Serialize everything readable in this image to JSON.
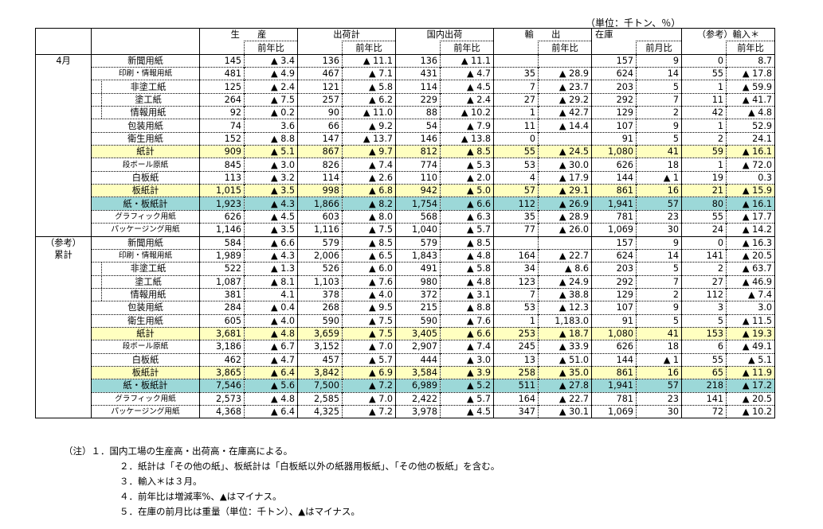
{
  "unit_label": "（単位：千トン、％）",
  "header": {
    "groups": [
      "生　　産",
      "出荷計",
      "国内出荷",
      "輸　　出",
      "在庫",
      "（参考）輸入＊"
    ],
    "sub_yoy": "前年比",
    "sub_mom": "前月比"
  },
  "sections": [
    {
      "label": "4月",
      "rows": [
        {
          "label": "新聞用紙",
          "style": "",
          "v": [
            "145",
            "▲ 3.4",
            "136",
            "▲ 11.1",
            "136",
            "▲ 11.1",
            "",
            "",
            "157",
            "9",
            "0",
            "8.7"
          ]
        },
        {
          "label": "印刷・情報用紙",
          "style": "small",
          "v": [
            "481",
            "▲ 4.9",
            "467",
            "▲ 7.1",
            "431",
            "▲ 4.7",
            "35",
            "▲ 28.9",
            "624",
            "14",
            "55",
            "▲ 17.8"
          ]
        },
        {
          "label": "非塗工紙",
          "style": "ind",
          "v": [
            "125",
            "▲ 2.4",
            "121",
            "▲ 5.8",
            "114",
            "▲ 4.5",
            "7",
            "▲ 23.7",
            "203",
            "5",
            "1",
            "▲ 59.9"
          ]
        },
        {
          "label": "塗工紙",
          "style": "ind",
          "v": [
            "264",
            "▲ 7.5",
            "257",
            "▲ 6.2",
            "229",
            "▲ 2.4",
            "27",
            "▲ 29.2",
            "292",
            "7",
            "11",
            "▲ 41.7"
          ]
        },
        {
          "label": "情報用紙",
          "style": "ind",
          "v": [
            "92",
            "▲ 0.2",
            "90",
            "▲ 11.0",
            "88",
            "▲ 10.2",
            "1",
            "▲ 42.7",
            "129",
            "2",
            "42",
            "▲ 4.8"
          ]
        },
        {
          "label": "包装用紙",
          "style": "",
          "v": [
            "74",
            "3.6",
            "66",
            "▲ 9.2",
            "54",
            "▲ 7.9",
            "11",
            "▲ 14.4",
            "107",
            "9",
            "1",
            "52.9"
          ]
        },
        {
          "label": "衛生用紙",
          "style": "",
          "v": [
            "152",
            "▲ 8.8",
            "147",
            "▲ 13.7",
            "146",
            "▲ 13.8",
            "0",
            "",
            "91",
            "5",
            "2",
            "24.1"
          ]
        },
        {
          "label": "紙計",
          "style": "y",
          "v": [
            "909",
            "▲ 5.1",
            "867",
            "▲ 9.7",
            "812",
            "▲ 8.5",
            "55",
            "▲ 24.5",
            "1,080",
            "41",
            "59",
            "▲ 16.1"
          ]
        },
        {
          "label": "段ボール原紙",
          "style": "small",
          "v": [
            "845",
            "▲ 3.0",
            "826",
            "▲ 7.4",
            "774",
            "▲ 5.3",
            "53",
            "▲ 30.0",
            "626",
            "18",
            "1",
            "▲ 72.0"
          ]
        },
        {
          "label": "白板紙",
          "style": "",
          "v": [
            "113",
            "▲ 3.2",
            "114",
            "▲ 2.6",
            "110",
            "▲ 2.0",
            "4",
            "▲ 17.9",
            "144",
            "▲ 1",
            "19",
            "0.3"
          ]
        },
        {
          "label": "板紙計",
          "style": "y",
          "v": [
            "1,015",
            "▲ 3.5",
            "998",
            "▲ 6.8",
            "942",
            "▲ 5.0",
            "57",
            "▲ 29.1",
            "861",
            "16",
            "21",
            "▲ 15.9"
          ]
        },
        {
          "label": "紙・板紙計",
          "style": "c",
          "v": [
            "1,923",
            "▲ 4.3",
            "1,866",
            "▲ 8.2",
            "1,754",
            "▲ 6.6",
            "112",
            "▲ 26.9",
            "1,941",
            "57",
            "80",
            "▲ 16.1"
          ]
        },
        {
          "label": "グラフィック用紙",
          "style": "small",
          "v": [
            "626",
            "▲ 4.5",
            "603",
            "▲ 8.0",
            "568",
            "▲ 6.3",
            "35",
            "▲ 28.9",
            "781",
            "23",
            "55",
            "▲ 17.7"
          ]
        },
        {
          "label": "パッケージング用紙",
          "style": "small",
          "v": [
            "1,146",
            "▲ 3.5",
            "1,116",
            "▲ 7.5",
            "1,040",
            "▲ 5.7",
            "77",
            "▲ 26.0",
            "1,069",
            "30",
            "24",
            "▲ 14.2"
          ]
        }
      ]
    },
    {
      "label": "（参考）\n累計",
      "rows": [
        {
          "label": "新聞用紙",
          "style": "",
          "v": [
            "584",
            "▲ 6.6",
            "579",
            "▲ 8.5",
            "579",
            "▲ 8.5",
            "",
            "",
            "157",
            "9",
            "0",
            "▲ 16.3"
          ]
        },
        {
          "label": "印刷・情報用紙",
          "style": "small",
          "v": [
            "1,989",
            "▲ 4.3",
            "2,006",
            "▲ 6.5",
            "1,843",
            "▲ 4.8",
            "164",
            "▲ 22.7",
            "624",
            "14",
            "141",
            "▲ 20.5"
          ]
        },
        {
          "label": "非塗工紙",
          "style": "ind",
          "v": [
            "522",
            "▲ 1.3",
            "526",
            "▲ 6.0",
            "491",
            "▲ 5.8",
            "34",
            "▲ 8.6",
            "203",
            "5",
            "2",
            "▲ 63.7"
          ]
        },
        {
          "label": "塗工紙",
          "style": "ind",
          "v": [
            "1,087",
            "▲ 8.1",
            "1,103",
            "▲ 7.6",
            "980",
            "▲ 4.8",
            "123",
            "▲ 24.9",
            "292",
            "7",
            "27",
            "▲ 46.9"
          ]
        },
        {
          "label": "情報用紙",
          "style": "ind",
          "v": [
            "381",
            "4.1",
            "378",
            "▲ 4.0",
            "372",
            "▲ 3.1",
            "7",
            "▲ 38.8",
            "129",
            "2",
            "112",
            "▲ 7.4"
          ]
        },
        {
          "label": "包装用紙",
          "style": "",
          "v": [
            "284",
            "▲ 0.4",
            "268",
            "▲ 9.5",
            "215",
            "▲ 8.8",
            "53",
            "▲ 12.3",
            "107",
            "9",
            "3",
            "3.0"
          ]
        },
        {
          "label": "衛生用紙",
          "style": "",
          "v": [
            "605",
            "▲ 4.0",
            "590",
            "▲ 7.5",
            "590",
            "▲ 7.6",
            "1",
            "1,183.0",
            "91",
            "5",
            "5",
            "▲ 11.5"
          ]
        },
        {
          "label": "紙計",
          "style": "y",
          "v": [
            "3,681",
            "▲ 4.8",
            "3,659",
            "▲ 7.5",
            "3,405",
            "▲ 6.6",
            "253",
            "▲ 18.7",
            "1,080",
            "41",
            "153",
            "▲ 19.3"
          ]
        },
        {
          "label": "段ボール原紙",
          "style": "small",
          "v": [
            "3,186",
            "▲ 6.7",
            "3,152",
            "▲ 7.0",
            "2,907",
            "▲ 7.4",
            "245",
            "▲ 33.9",
            "626",
            "18",
            "6",
            "▲ 49.1"
          ]
        },
        {
          "label": "白板紙",
          "style": "",
          "v": [
            "462",
            "▲ 4.7",
            "457",
            "▲ 5.7",
            "444",
            "▲ 3.0",
            "13",
            "▲ 51.0",
            "144",
            "▲ 1",
            "55",
            "▲ 5.1"
          ]
        },
        {
          "label": "板紙計",
          "style": "y",
          "v": [
            "3,865",
            "▲ 6.4",
            "3,842",
            "▲ 6.9",
            "3,584",
            "▲ 3.9",
            "258",
            "▲ 35.0",
            "861",
            "16",
            "65",
            "▲ 11.9"
          ]
        },
        {
          "label": "紙・板紙計",
          "style": "c",
          "v": [
            "7,546",
            "▲ 5.6",
            "7,500",
            "▲ 7.2",
            "6,989",
            "▲ 5.2",
            "511",
            "▲ 27.8",
            "1,941",
            "57",
            "218",
            "▲ 17.2"
          ]
        },
        {
          "label": "グラフィック用紙",
          "style": "small",
          "v": [
            "2,573",
            "▲ 4.8",
            "2,585",
            "▲ 7.0",
            "2,422",
            "▲ 5.7",
            "164",
            "▲ 22.7",
            "781",
            "23",
            "141",
            "▲ 20.5"
          ]
        },
        {
          "label": "パッケージング用紙",
          "style": "small",
          "v": [
            "4,368",
            "▲ 6.4",
            "4,325",
            "▲ 7.2",
            "3,978",
            "▲ 4.5",
            "347",
            "▲ 30.1",
            "1,069",
            "30",
            "72",
            "▲ 10.2"
          ]
        }
      ]
    }
  ],
  "notes": [
    "（注）１．国内工場の生産高・出荷高・在庫高による。",
    "２．紙計は「その他の紙」、板紙計は「白板紙以外の紙器用板紙」、「その他の板紙」を含む。",
    "３．輸入＊は３月。",
    "４．前年比は増減率%、▲はマイナス。",
    "５．在庫の前月比は重量（単位：千トン）、▲はマイナス。"
  ]
}
